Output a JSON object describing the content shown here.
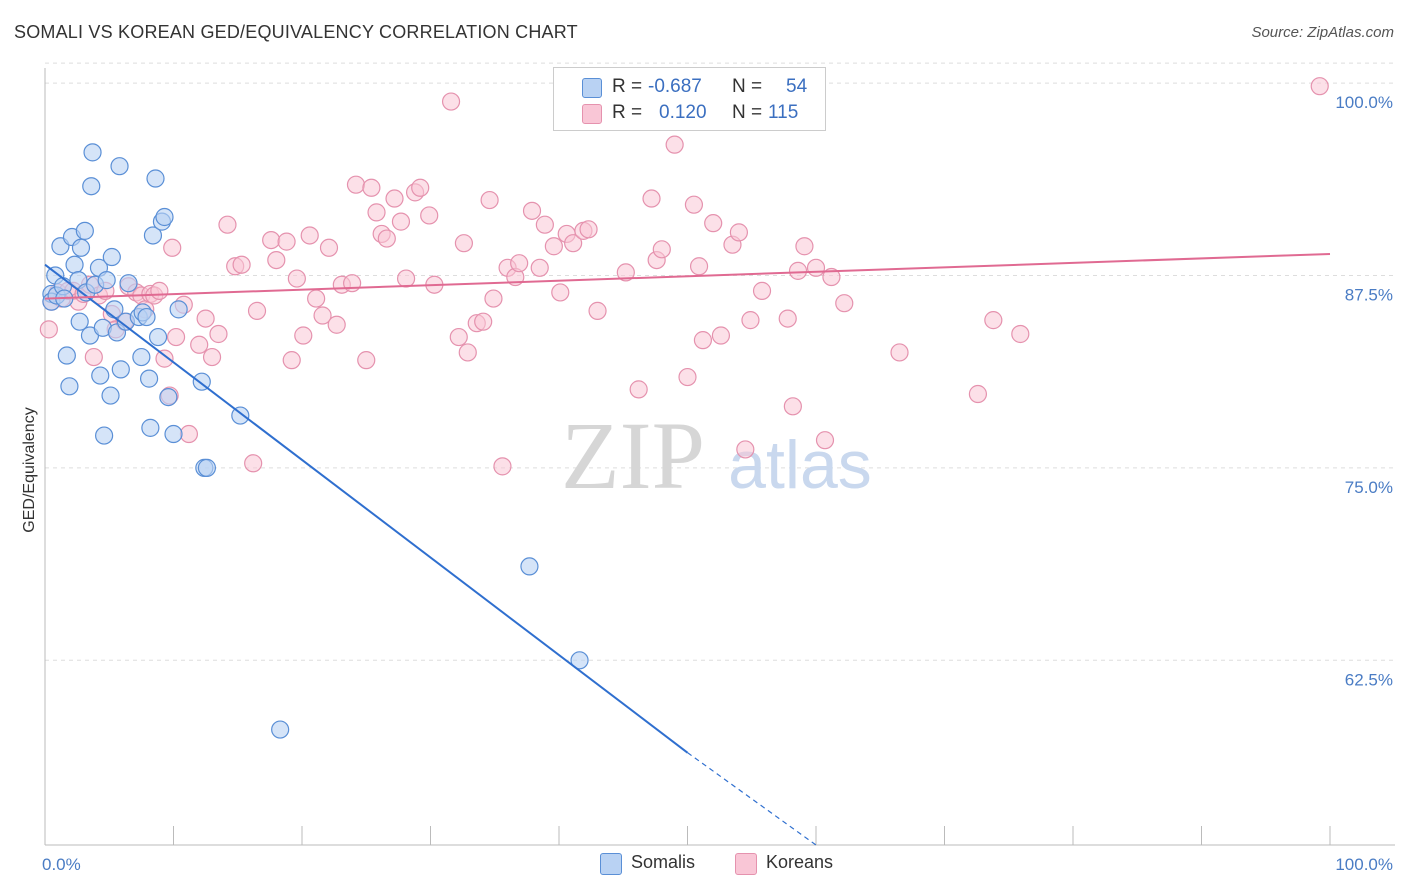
{
  "title": "SOMALI VS KOREAN GED/EQUIVALENCY CORRELATION CHART",
  "source": "Source: ZipAtlas.com",
  "watermark": {
    "zip": "ZIP",
    "atlas": "atlas"
  },
  "legend": {
    "somali": {
      "r_label": "R =",
      "r_value": "-0.687",
      "n_label": "N =",
      "n_value": "54"
    },
    "korean": {
      "r_label": "R =",
      "r_value": "0.120",
      "n_label": "N =",
      "n_value": "115"
    }
  },
  "bottom_legend": {
    "somalis": "Somalis",
    "koreans": "Koreans"
  },
  "colors": {
    "somali_fill": "#b9d2f3",
    "somali_stroke": "#5a8fd6",
    "somali_line": "#2f6fcf",
    "korean_fill": "#f9c6d6",
    "korean_stroke": "#e592ae",
    "korean_line": "#e06a92",
    "axis_label": "#4a7cc4",
    "grid": "#dddddd"
  },
  "chart_data": {
    "type": "scatter",
    "title": "SOMALI VS KOREAN GED/EQUIVALENCY CORRELATION CHART",
    "xlabel": "",
    "ylabel": "GED/Equivalency",
    "xlim": [
      0,
      100
    ],
    "ylim": [
      50.5,
      101.5
    ],
    "x_tick_labels": [
      "0.0%",
      "100.0%"
    ],
    "y_ticks": [
      62.5,
      75.0,
      87.5,
      100.0
    ],
    "y_tick_labels": [
      "62.5%",
      "75.0%",
      "87.5%",
      "100.0%"
    ],
    "grid": true,
    "series": [
      {
        "name": "Somalis",
        "points": [
          [
            0.5,
            86.3
          ],
          [
            0.5,
            85.8
          ],
          [
            0.8,
            87.5
          ],
          [
            0.9,
            86.2
          ],
          [
            1.2,
            89.4
          ],
          [
            1.4,
            86.8
          ],
          [
            1.5,
            86.0
          ],
          [
            1.7,
            82.3
          ],
          [
            1.9,
            80.3
          ],
          [
            2.1,
            90.0
          ],
          [
            2.3,
            88.2
          ],
          [
            2.6,
            87.2
          ],
          [
            2.7,
            84.5
          ],
          [
            2.8,
            89.3
          ],
          [
            3.1,
            90.4
          ],
          [
            3.2,
            86.4
          ],
          [
            3.5,
            83.6
          ],
          [
            3.6,
            93.3
          ],
          [
            3.7,
            95.5
          ],
          [
            3.9,
            86.9
          ],
          [
            4.2,
            88.0
          ],
          [
            4.3,
            81.0
          ],
          [
            4.5,
            84.1
          ],
          [
            4.6,
            77.1
          ],
          [
            4.8,
            87.2
          ],
          [
            5.1,
            79.7
          ],
          [
            5.2,
            88.7
          ],
          [
            5.4,
            85.3
          ],
          [
            5.6,
            83.8
          ],
          [
            5.8,
            94.6
          ],
          [
            5.9,
            81.4
          ],
          [
            6.3,
            84.5
          ],
          [
            6.5,
            87.0
          ],
          [
            7.3,
            84.8
          ],
          [
            7.5,
            82.2
          ],
          [
            7.6,
            85.1
          ],
          [
            7.9,
            84.8
          ],
          [
            8.1,
            80.8
          ],
          [
            8.2,
            77.6
          ],
          [
            8.4,
            90.1
          ],
          [
            8.6,
            93.8
          ],
          [
            8.8,
            83.5
          ],
          [
            9.1,
            91.0
          ],
          [
            9.3,
            91.3
          ],
          [
            9.6,
            79.6
          ],
          [
            10.0,
            77.2
          ],
          [
            10.4,
            85.3
          ],
          [
            12.2,
            80.6
          ],
          [
            12.4,
            75.0
          ],
          [
            12.6,
            75.0
          ],
          [
            15.2,
            78.4
          ],
          [
            18.3,
            58.0
          ],
          [
            37.7,
            68.6
          ],
          [
            41.6,
            62.5
          ]
        ]
      },
      {
        "name": "Koreans",
        "points": [
          [
            0.3,
            84.0
          ],
          [
            0.5,
            85.8
          ],
          [
            1.0,
            86.4
          ],
          [
            1.3,
            86.0
          ],
          [
            1.8,
            86.5
          ],
          [
            2.2,
            86.5
          ],
          [
            2.6,
            85.8
          ],
          [
            3.0,
            86.3
          ],
          [
            3.5,
            86.9
          ],
          [
            3.8,
            82.2
          ],
          [
            4.2,
            86.2
          ],
          [
            4.7,
            86.5
          ],
          [
            5.2,
            85.0
          ],
          [
            5.5,
            84.0
          ],
          [
            6.2,
            84.5
          ],
          [
            6.5,
            86.8
          ],
          [
            7.1,
            86.4
          ],
          [
            7.5,
            86.2
          ],
          [
            7.8,
            85.3
          ],
          [
            8.2,
            86.3
          ],
          [
            8.5,
            86.2
          ],
          [
            8.9,
            86.5
          ],
          [
            9.3,
            82.1
          ],
          [
            9.7,
            79.7
          ],
          [
            9.9,
            89.3
          ],
          [
            10.2,
            83.5
          ],
          [
            10.8,
            85.6
          ],
          [
            11.2,
            77.2
          ],
          [
            12.0,
            83.0
          ],
          [
            12.5,
            84.7
          ],
          [
            13.0,
            82.2
          ],
          [
            13.5,
            83.7
          ],
          [
            14.2,
            90.8
          ],
          [
            14.8,
            88.1
          ],
          [
            15.3,
            88.2
          ],
          [
            16.2,
            75.3
          ],
          [
            16.5,
            85.2
          ],
          [
            17.6,
            89.8
          ],
          [
            18.0,
            88.5
          ],
          [
            18.8,
            89.7
          ],
          [
            19.2,
            82.0
          ],
          [
            19.6,
            87.3
          ],
          [
            20.1,
            83.6
          ],
          [
            20.6,
            90.1
          ],
          [
            21.1,
            86.0
          ],
          [
            21.6,
            84.9
          ],
          [
            22.1,
            89.3
          ],
          [
            22.7,
            84.3
          ],
          [
            23.1,
            86.9
          ],
          [
            23.9,
            87.0
          ],
          [
            24.2,
            93.4
          ],
          [
            25.0,
            82.0
          ],
          [
            25.4,
            93.2
          ],
          [
            25.8,
            91.6
          ],
          [
            26.2,
            90.2
          ],
          [
            26.6,
            89.9
          ],
          [
            27.2,
            92.5
          ],
          [
            27.7,
            91.0
          ],
          [
            28.1,
            87.3
          ],
          [
            28.8,
            92.9
          ],
          [
            29.2,
            93.2
          ],
          [
            29.9,
            91.4
          ],
          [
            30.3,
            86.9
          ],
          [
            31.6,
            98.8
          ],
          [
            32.2,
            83.5
          ],
          [
            32.6,
            89.6
          ],
          [
            32.9,
            82.5
          ],
          [
            33.6,
            84.4
          ],
          [
            34.1,
            84.5
          ],
          [
            34.6,
            92.4
          ],
          [
            34.9,
            86.0
          ],
          [
            35.6,
            75.1
          ],
          [
            36.0,
            88.0
          ],
          [
            36.6,
            87.4
          ],
          [
            36.9,
            88.3
          ],
          [
            37.9,
            91.7
          ],
          [
            38.5,
            88.0
          ],
          [
            38.9,
            90.8
          ],
          [
            39.6,
            89.4
          ],
          [
            40.1,
            86.4
          ],
          [
            40.6,
            90.2
          ],
          [
            41.1,
            89.6
          ],
          [
            41.9,
            90.4
          ],
          [
            42.3,
            90.5
          ],
          [
            43.0,
            85.2
          ],
          [
            45.2,
            87.7
          ],
          [
            46.2,
            80.1
          ],
          [
            47.2,
            92.5
          ],
          [
            47.6,
            88.5
          ],
          [
            48.0,
            89.2
          ],
          [
            49.0,
            96.0
          ],
          [
            50.0,
            80.9
          ],
          [
            50.5,
            92.1
          ],
          [
            50.9,
            88.1
          ],
          [
            51.2,
            83.3
          ],
          [
            52.0,
            90.9
          ],
          [
            52.6,
            83.6
          ],
          [
            53.5,
            89.5
          ],
          [
            54.0,
            90.3
          ],
          [
            54.5,
            76.2
          ],
          [
            54.9,
            84.6
          ],
          [
            55.8,
            86.5
          ],
          [
            57.8,
            84.7
          ],
          [
            58.2,
            79.0
          ],
          [
            58.6,
            87.8
          ],
          [
            59.1,
            89.4
          ],
          [
            60.0,
            88.0
          ],
          [
            60.7,
            76.8
          ],
          [
            61.2,
            87.4
          ],
          [
            62.2,
            85.7
          ],
          [
            66.5,
            82.5
          ],
          [
            72.6,
            79.8
          ],
          [
            73.8,
            84.6
          ],
          [
            75.9,
            83.7
          ],
          [
            99.2,
            99.8
          ]
        ]
      }
    ],
    "trend_lines": [
      {
        "name": "Somalis",
        "x": [
          0,
          50
        ],
        "y": [
          88.2,
          56.5
        ],
        "dashed_extension": {
          "x": [
            50,
            60
          ],
          "y": [
            56.5,
            50.5
          ]
        }
      },
      {
        "name": "Koreans",
        "x": [
          0,
          100
        ],
        "y": [
          86.0,
          88.9
        ]
      }
    ]
  }
}
